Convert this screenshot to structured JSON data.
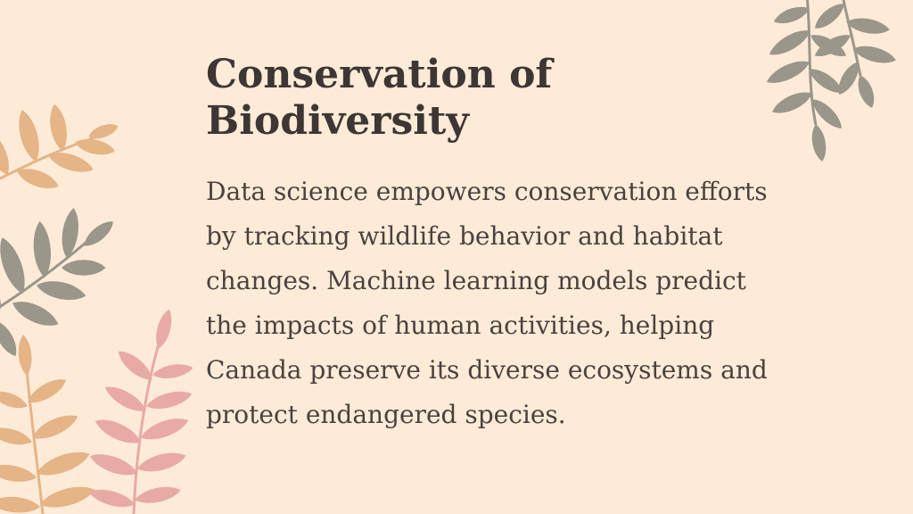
{
  "slide": {
    "title": "Conservation of Biodiversity",
    "body": "Data science empowers conservation efforts by tracking wildlife behavior and habitat changes. Machine learning models predict the impacts of human activities, helping Canada preserve its diverse ecosystems and protect endangered species."
  },
  "colors": {
    "background": "#fdebd8",
    "title_text": "#3d3633",
    "body_text": "#4a423e",
    "leaf_peach": "#e5b487",
    "leaf_olive": "#9a968a",
    "leaf_pink": "#e8aaa4"
  },
  "decorations": [
    {
      "name": "peach-leaf-branch-icon"
    },
    {
      "name": "olive-leaf-branch-icon"
    },
    {
      "name": "peach-fern-icon"
    },
    {
      "name": "pink-fern-icon"
    },
    {
      "name": "olive-hanging-branch-icon"
    }
  ]
}
